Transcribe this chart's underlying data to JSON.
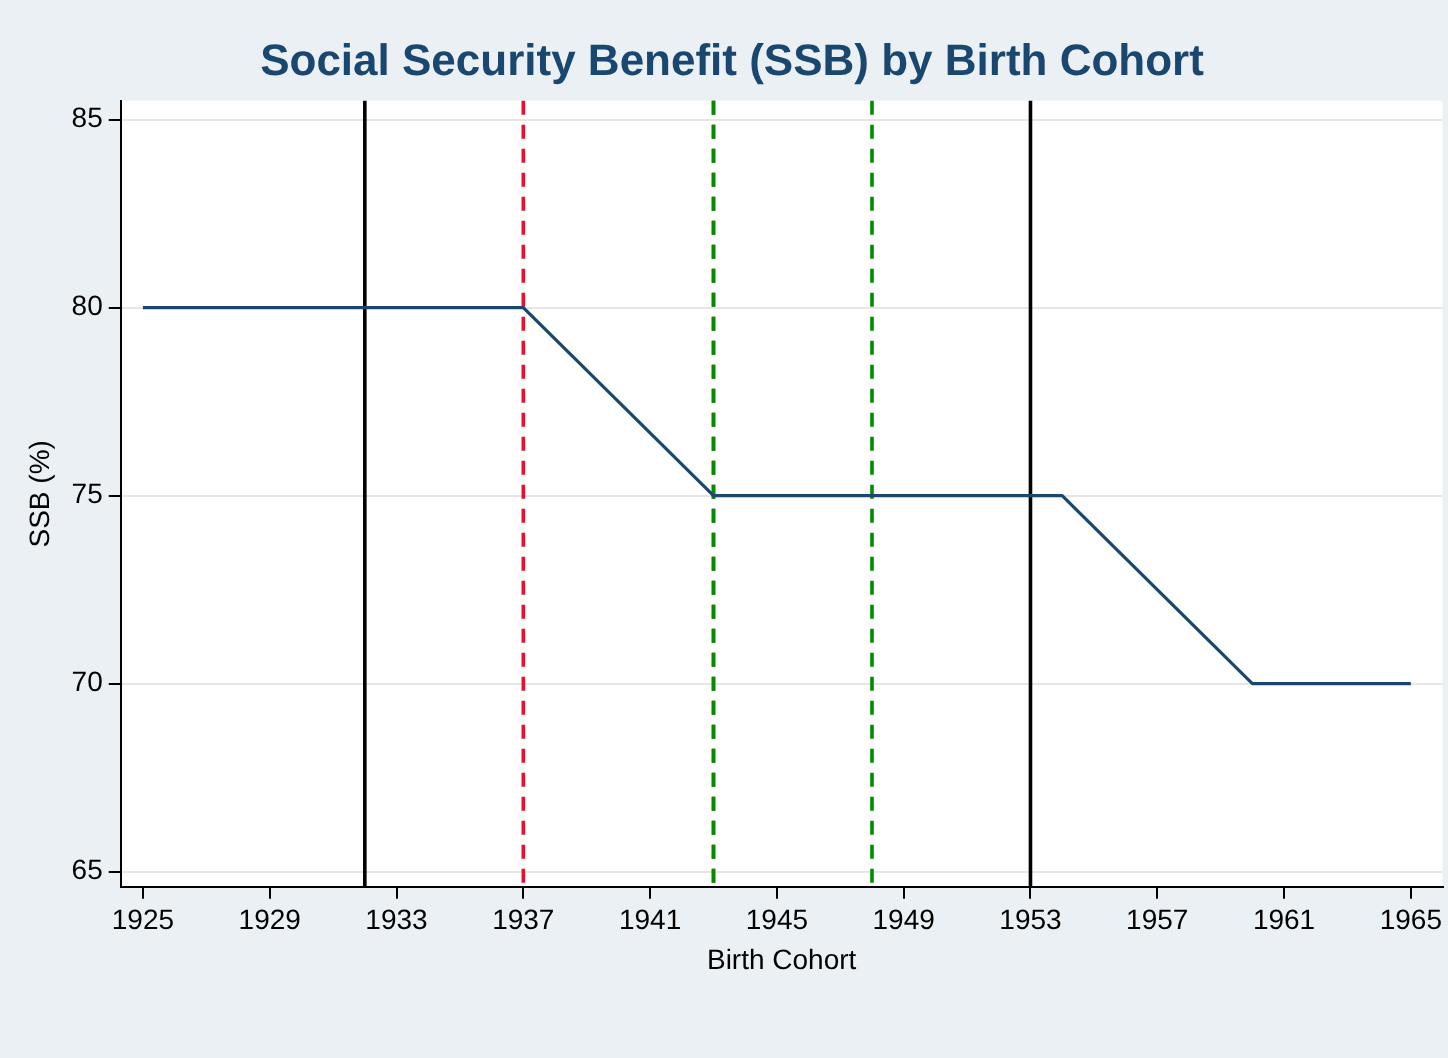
{
  "chart_data": {
    "type": "line",
    "title": "Social Security Benefit (SSB) by Birth Cohort",
    "xlabel": "Birth Cohort",
    "ylabel": "SSB (%)",
    "series": [
      {
        "color": "#1a476f",
        "x": [
          1925,
          1937,
          1943,
          1954,
          1960,
          1965
        ],
        "values": [
          80,
          80,
          75,
          75,
          70,
          70
        ]
      }
    ],
    "xlim": [
      1924.3,
      1966
    ],
    "xticks": [
      1925,
      1929,
      1933,
      1937,
      1941,
      1945,
      1949,
      1953,
      1957,
      1961,
      1965
    ],
    "ylim": [
      64.6,
      85.5
    ],
    "yticks": [
      65,
      70,
      75,
      80,
      85
    ],
    "ref_lines": [
      {
        "axis": "x",
        "value": 1932,
        "color": "#000000",
        "line_style": "solid"
      },
      {
        "axis": "x",
        "value": 1937,
        "color": "#e8112d",
        "line_style": "dashed"
      },
      {
        "axis": "x",
        "value": 1943,
        "color": "#e8112d",
        "line_style": "dashed"
      },
      {
        "axis": "x",
        "value": 1943,
        "color": "#008b00",
        "line_style": "dashed"
      },
      {
        "axis": "x",
        "value": 1948,
        "color": "#008b00",
        "line_style": "dashed"
      },
      {
        "axis": "x",
        "value": 1953,
        "color": "#000000",
        "line_style": "solid"
      }
    ],
    "grid": "y",
    "legend": false,
    "marker": "none",
    "line_style": "solid"
  }
}
